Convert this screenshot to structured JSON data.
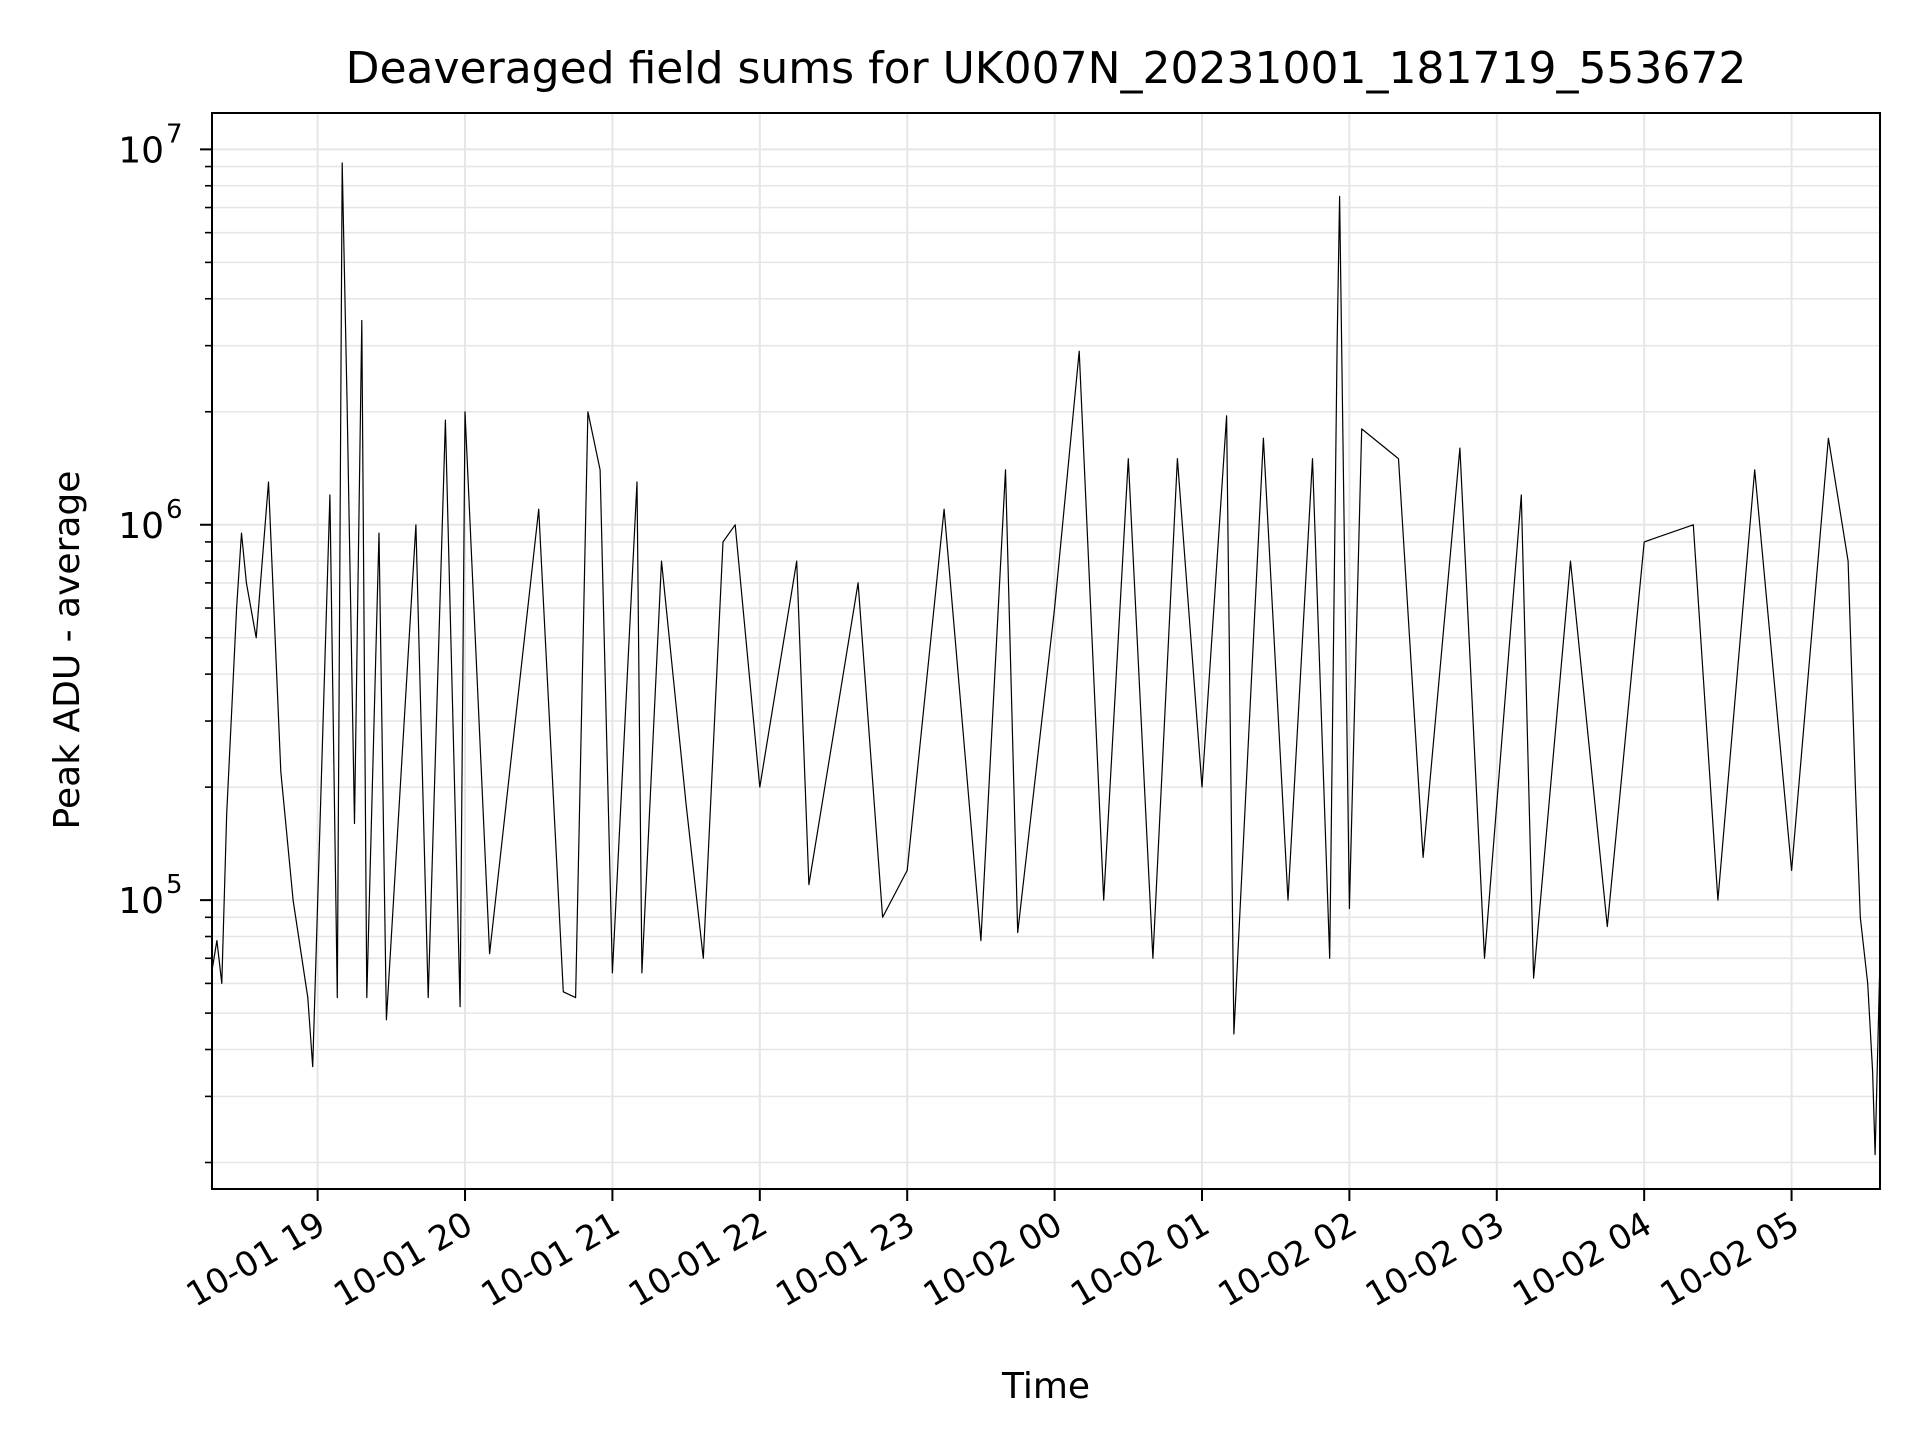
{
  "chart_data": {
    "type": "line",
    "title": "Deaveraged field sums for UK007N_20231001_181719_553672",
    "xlabel": "Time",
    "ylabel": "Peak ADU - average",
    "yscale": "log",
    "ylim": [
      17000,
      12500000
    ],
    "xlim": [
      "2023-10-01 18:17",
      "2023-10-02 05:36"
    ],
    "x_ticks": [
      {
        "label": "10-01 19",
        "time": "2023-10-01 19:00"
      },
      {
        "label": "10-01 20",
        "time": "2023-10-01 20:00"
      },
      {
        "label": "10-01 21",
        "time": "2023-10-01 21:00"
      },
      {
        "label": "10-01 22",
        "time": "2023-10-01 22:00"
      },
      {
        "label": "10-01 23",
        "time": "2023-10-01 23:00"
      },
      {
        "label": "10-02 00",
        "time": "2023-10-02 00:00"
      },
      {
        "label": "10-02 01",
        "time": "2023-10-02 01:00"
      },
      {
        "label": "10-02 02",
        "time": "2023-10-02 02:00"
      },
      {
        "label": "10-02 03",
        "time": "2023-10-02 03:00"
      },
      {
        "label": "10-02 04",
        "time": "2023-10-02 04:00"
      },
      {
        "label": "10-02 05",
        "time": "2023-10-02 05:00"
      }
    ],
    "y_ticks": [
      {
        "base": "10",
        "exp": "5",
        "value": 100000
      },
      {
        "base": "10",
        "exp": "6",
        "value": 1000000
      },
      {
        "base": "10",
        "exp": "7",
        "value": 10000000
      }
    ],
    "grid": true,
    "line_color": "#000000",
    "grid_color": "#e6e6e6",
    "series": [
      {
        "points": [
          [
            "2023-10-01 18:17",
            65000
          ],
          [
            "2023-10-01 18:19",
            78000
          ],
          [
            "2023-10-01 18:21",
            60000
          ],
          [
            "2023-10-01 18:23",
            170000
          ],
          [
            "2023-10-01 18:25",
            320000
          ],
          [
            "2023-10-01 18:27",
            600000
          ],
          [
            "2023-10-01 18:29",
            950000
          ],
          [
            "2023-10-01 18:31",
            700000
          ],
          [
            "2023-10-01 18:35",
            500000
          ],
          [
            "2023-10-01 18:40",
            1300000
          ],
          [
            "2023-10-01 18:45",
            220000
          ],
          [
            "2023-10-01 18:50",
            100000
          ],
          [
            "2023-10-01 18:56",
            55000
          ],
          [
            "2023-10-01 18:58",
            36000
          ],
          [
            "2023-10-01 19:05",
            1200000
          ],
          [
            "2023-10-01 19:08",
            55000
          ],
          [
            "2023-10-01 19:10",
            9200000
          ],
          [
            "2023-10-01 19:12",
            2100000
          ],
          [
            "2023-10-01 19:15",
            160000
          ],
          [
            "2023-10-01 19:18",
            3500000
          ],
          [
            "2023-10-01 19:20",
            55000
          ],
          [
            "2023-10-01 19:25",
            950000
          ],
          [
            "2023-10-01 19:28",
            48000
          ],
          [
            "2023-10-01 19:40",
            1000000
          ],
          [
            "2023-10-01 19:45",
            55000
          ],
          [
            "2023-10-01 19:52",
            1900000
          ],
          [
            "2023-10-01 19:58",
            52000
          ],
          [
            "2023-10-01 20:00",
            2000000
          ],
          [
            "2023-10-01 20:10",
            72000
          ],
          [
            "2023-10-01 20:30",
            1100000
          ],
          [
            "2023-10-01 20:40",
            57000
          ],
          [
            "2023-10-01 20:45",
            55000
          ],
          [
            "2023-10-01 20:50",
            2000000
          ],
          [
            "2023-10-01 20:55",
            1400000
          ],
          [
            "2023-10-01 21:00",
            64000
          ],
          [
            "2023-10-01 21:10",
            1300000
          ],
          [
            "2023-10-01 21:12",
            64000
          ],
          [
            "2023-10-01 21:20",
            800000
          ],
          [
            "2023-10-01 21:30",
            180000
          ],
          [
            "2023-10-01 21:37",
            70000
          ],
          [
            "2023-10-01 21:45",
            900000
          ],
          [
            "2023-10-01 21:50",
            1000000
          ],
          [
            "2023-10-01 22:00",
            200000
          ],
          [
            "2023-10-01 22:15",
            800000
          ],
          [
            "2023-10-01 22:20",
            110000
          ],
          [
            "2023-10-01 22:40",
            700000
          ],
          [
            "2023-10-01 22:50",
            90000
          ],
          [
            "2023-10-01 23:00",
            120000
          ],
          [
            "2023-10-01 23:15",
            1100000
          ],
          [
            "2023-10-01 23:30",
            78000
          ],
          [
            "2023-10-01 23:40",
            1400000
          ],
          [
            "2023-10-01 23:45",
            82000
          ],
          [
            "2023-10-02 00:00",
            600000
          ],
          [
            "2023-10-02 00:10",
            2900000
          ],
          [
            "2023-10-02 00:20",
            100000
          ],
          [
            "2023-10-02 00:30",
            1500000
          ],
          [
            "2023-10-02 00:40",
            70000
          ],
          [
            "2023-10-02 00:50",
            1500000
          ],
          [
            "2023-10-02 01:00",
            200000
          ],
          [
            "2023-10-02 01:10",
            1950000
          ],
          [
            "2023-10-02 01:13",
            44000
          ],
          [
            "2023-10-02 01:25",
            1700000
          ],
          [
            "2023-10-02 01:35",
            100000
          ],
          [
            "2023-10-02 01:45",
            1500000
          ],
          [
            "2023-10-02 01:52",
            70000
          ],
          [
            "2023-10-02 01:55",
            3000000
          ],
          [
            "2023-10-02 01:56",
            7500000
          ],
          [
            "2023-10-02 02:00",
            95000
          ],
          [
            "2023-10-02 02:05",
            1800000
          ],
          [
            "2023-10-02 02:20",
            1500000
          ],
          [
            "2023-10-02 02:30",
            130000
          ],
          [
            "2023-10-02 02:45",
            1600000
          ],
          [
            "2023-10-02 02:55",
            70000
          ],
          [
            "2023-10-02 03:10",
            1200000
          ],
          [
            "2023-10-02 03:15",
            62000
          ],
          [
            "2023-10-02 03:30",
            800000
          ],
          [
            "2023-10-02 03:45",
            85000
          ],
          [
            "2023-10-02 04:00",
            900000
          ],
          [
            "2023-10-02 04:20",
            1000000
          ],
          [
            "2023-10-02 04:30",
            100000
          ],
          [
            "2023-10-02 04:45",
            1400000
          ],
          [
            "2023-10-02 05:00",
            120000
          ],
          [
            "2023-10-02 05:15",
            1700000
          ],
          [
            "2023-10-02 05:23",
            800000
          ],
          [
            "2023-10-02 05:26",
            200000
          ],
          [
            "2023-10-02 05:28",
            90000
          ],
          [
            "2023-10-02 05:31",
            60000
          ],
          [
            "2023-10-02 05:33",
            35000
          ],
          [
            "2023-10-02 05:34",
            21000
          ],
          [
            "2023-10-02 05:36",
            70000
          ]
        ]
      }
    ]
  }
}
